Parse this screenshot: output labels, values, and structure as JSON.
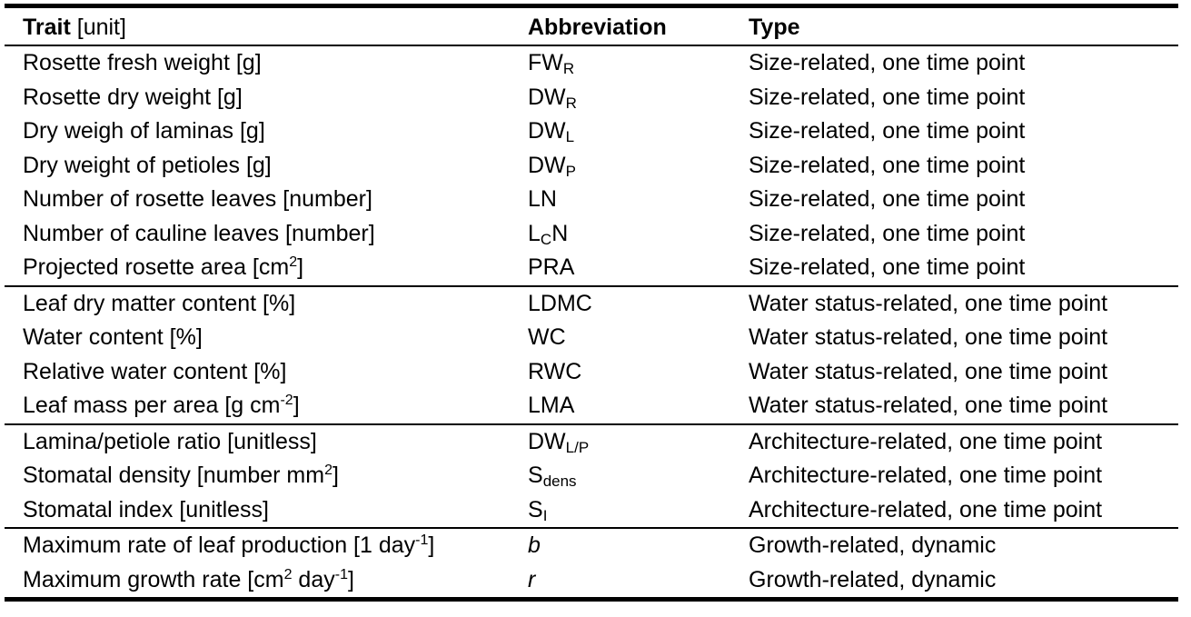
{
  "header": {
    "trait_bold": "Trait",
    "trait_unit": "[unit]",
    "abbreviation": "Abbreviation",
    "type": "Type"
  },
  "rows": [
    {
      "trait": "Rosette fresh weight [g]",
      "abbr_main": "FW",
      "abbr_sub": "R",
      "type": "Size-related, one time point"
    },
    {
      "trait": "Rosette dry weight [g]",
      "abbr_main": "DW",
      "abbr_sub": "R",
      "type": "Size-related, one time point"
    },
    {
      "trait": "Dry weigh of laminas [g]",
      "abbr_main": "DW",
      "abbr_sub": "L",
      "type": "Size-related, one time point"
    },
    {
      "trait": "Dry weight of petioles [g]",
      "abbr_main": "DW",
      "abbr_sub": "P",
      "type": "Size-related, one time point"
    },
    {
      "trait": "Number of rosette leaves [number]",
      "abbr": "LN",
      "type": "Size-related, one time point"
    },
    {
      "trait": "Number of cauline leaves [number]",
      "abbr_main": "L",
      "abbr_sub": "C",
      "abbr_tail": "N",
      "type": "Size-related, one time point"
    },
    {
      "trait_pre": "Projected rosette area [cm",
      "trait_sup": "2",
      "trait_post": "]",
      "abbr": "PRA",
      "type": "Size-related, one time point"
    },
    {
      "trait": "Leaf dry matter content [%]",
      "abbr": "LDMC",
      "type": "Water status-related, one time point"
    },
    {
      "trait": "Water content [%]",
      "abbr": "WC",
      "type": "Water status-related, one time point"
    },
    {
      "trait": "Relative water content [%]",
      "abbr": "RWC",
      "type": "Water status-related, one time point"
    },
    {
      "trait_pre": "Leaf mass per area [g cm",
      "trait_sup": "-2",
      "trait_post": "]",
      "abbr": "LMA",
      "type": "Water status-related, one time point"
    },
    {
      "trait": "Lamina/petiole ratio [unitless]",
      "abbr_main": "DW",
      "abbr_sub": "L/P",
      "type": "Architecture-related, one time point"
    },
    {
      "trait_pre": "Stomatal density [number mm",
      "trait_sup": "2",
      "trait_post": "]",
      "abbr_main": "S",
      "abbr_sub": "dens",
      "type": "Architecture-related, one time point"
    },
    {
      "trait": "Stomatal index [unitless]",
      "abbr_main": "S",
      "abbr_sub": "I",
      "type": "Architecture-related, one time point"
    },
    {
      "trait_pre": "Maximum rate of leaf production [1 day",
      "trait_sup": "-1",
      "trait_post": "]",
      "abbr": "b",
      "type": "Growth-related, dynamic"
    },
    {
      "trait_pre": "Maximum growth rate [cm",
      "trait_sup": "2",
      "trait_mid": " day",
      "trait_sup2": "-1",
      "trait_post": "]",
      "abbr": "r",
      "type": "Growth-related, dynamic"
    }
  ]
}
